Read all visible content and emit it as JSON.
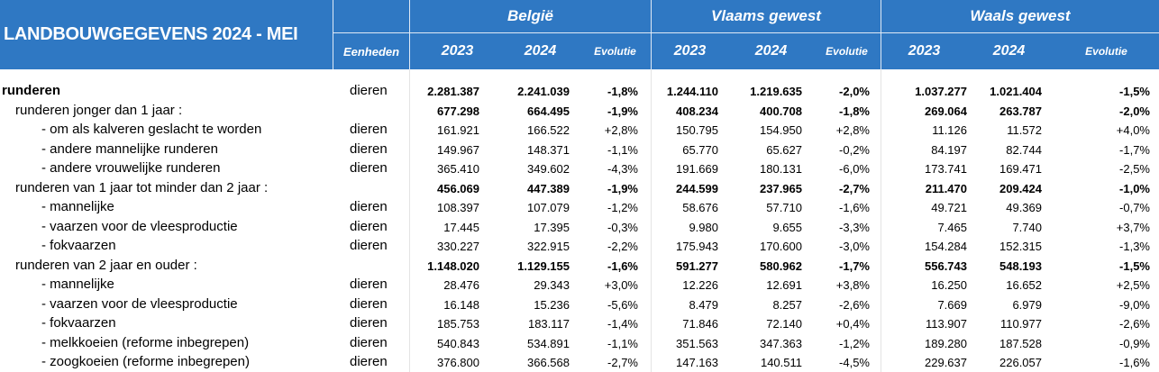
{
  "header": {
    "title": "LANDBOUWGEGEVENS 2024 - MEI",
    "units_label": "Eenheden",
    "groups": [
      "België",
      "Vlaams gewest",
      "Waals gewest"
    ],
    "col_2023": "2023",
    "col_2024": "2024",
    "col_evolutie": "Evolutie"
  },
  "rows": [
    {
      "label": "runderen",
      "unit": "dieren",
      "be23": "2.281.387",
      "be24": "2.241.039",
      "beev": "-1,8%",
      "vl23": "1.244.110",
      "vl24": "1.219.635",
      "vlev": "-2,0%",
      "wa23": "1.037.277",
      "wa24": "1.021.404",
      "waev": "-1,5%"
    },
    {
      "label": "runderen jonger dan 1 jaar :",
      "unit": "",
      "be23": "677.298",
      "be24": "664.495",
      "beev": "-1,9%",
      "vl23": "408.234",
      "vl24": "400.708",
      "vlev": "-1,8%",
      "wa23": "269.064",
      "wa24": "263.787",
      "waev": "-2,0%"
    },
    {
      "label": "- om als kalveren geslacht te worden",
      "unit": "dieren",
      "be23": "161.921",
      "be24": "166.522",
      "beev": "+2,8%",
      "vl23": "150.795",
      "vl24": "154.950",
      "vlev": "+2,8%",
      "wa23": "11.126",
      "wa24": "11.572",
      "waev": "+4,0%"
    },
    {
      "label": "- andere mannelijke runderen",
      "unit": "dieren",
      "be23": "149.967",
      "be24": "148.371",
      "beev": "-1,1%",
      "vl23": "65.770",
      "vl24": "65.627",
      "vlev": "-0,2%",
      "wa23": "84.197",
      "wa24": "82.744",
      "waev": "-1,7%"
    },
    {
      "label": "- andere vrouwelijke runderen",
      "unit": "dieren",
      "be23": "365.410",
      "be24": "349.602",
      "beev": "-4,3%",
      "vl23": "191.669",
      "vl24": "180.131",
      "vlev": "-6,0%",
      "wa23": "173.741",
      "wa24": "169.471",
      "waev": "-2,5%"
    },
    {
      "label": "runderen van 1 jaar tot minder dan 2 jaar :",
      "unit": "",
      "be23": "456.069",
      "be24": "447.389",
      "beev": "-1,9%",
      "vl23": "244.599",
      "vl24": "237.965",
      "vlev": "-2,7%",
      "wa23": "211.470",
      "wa24": "209.424",
      "waev": "-1,0%"
    },
    {
      "label": "- mannelijke",
      "unit": "dieren",
      "be23": "108.397",
      "be24": "107.079",
      "beev": "-1,2%",
      "vl23": "58.676",
      "vl24": "57.710",
      "vlev": "-1,6%",
      "wa23": "49.721",
      "wa24": "49.369",
      "waev": "-0,7%"
    },
    {
      "label": "- vaarzen voor de vleesproductie",
      "unit": "dieren",
      "be23": "17.445",
      "be24": "17.395",
      "beev": "-0,3%",
      "vl23": "9.980",
      "vl24": "9.655",
      "vlev": "-3,3%",
      "wa23": "7.465",
      "wa24": "7.740",
      "waev": "+3,7%"
    },
    {
      "label": "- fokvaarzen",
      "unit": "dieren",
      "be23": "330.227",
      "be24": "322.915",
      "beev": "-2,2%",
      "vl23": "175.943",
      "vl24": "170.600",
      "vlev": "-3,0%",
      "wa23": "154.284",
      "wa24": "152.315",
      "waev": "-1,3%"
    },
    {
      "label": "runderen van 2 jaar en ouder :",
      "unit": "",
      "be23": "1.148.020",
      "be24": "1.129.155",
      "beev": "-1,6%",
      "vl23": "591.277",
      "vl24": "580.962",
      "vlev": "-1,7%",
      "wa23": "556.743",
      "wa24": "548.193",
      "waev": "-1,5%"
    },
    {
      "label": "- mannelijke",
      "unit": "dieren",
      "be23": "28.476",
      "be24": "29.343",
      "beev": "+3,0%",
      "vl23": "12.226",
      "vl24": "12.691",
      "vlev": "+3,8%",
      "wa23": "16.250",
      "wa24": "16.652",
      "waev": "+2,5%"
    },
    {
      "label": "- vaarzen voor de vleesproductie",
      "unit": "dieren",
      "be23": "16.148",
      "be24": "15.236",
      "beev": "-5,6%",
      "vl23": "8.479",
      "vl24": "8.257",
      "vlev": "-2,6%",
      "wa23": "7.669",
      "wa24": "6.979",
      "waev": "-9,0%"
    },
    {
      "label": "- fokvaarzen",
      "unit": "dieren",
      "be23": "185.753",
      "be24": "183.117",
      "beev": "-1,4%",
      "vl23": "71.846",
      "vl24": "72.140",
      "vlev": "+0,4%",
      "wa23": "113.907",
      "wa24": "110.977",
      "waev": "-2,6%"
    },
    {
      "label": "- melkkoeien (reforme inbegrepen)",
      "unit": "dieren",
      "be23": "540.843",
      "be24": "534.891",
      "beev": "-1,1%",
      "vl23": "351.563",
      "vl24": "347.363",
      "vlev": "-1,2%",
      "wa23": "189.280",
      "wa24": "187.528",
      "waev": "-0,9%"
    },
    {
      "label": "- zoogkoeien (reforme inbegrepen)",
      "unit": "dieren",
      "be23": "376.800",
      "be24": "366.568",
      "beev": "-2,7%",
      "vl23": "147.163",
      "vl24": "140.511",
      "vlev": "-4,5%",
      "wa23": "229.637",
      "wa24": "226.057",
      "waev": "-1,6%"
    }
  ]
}
